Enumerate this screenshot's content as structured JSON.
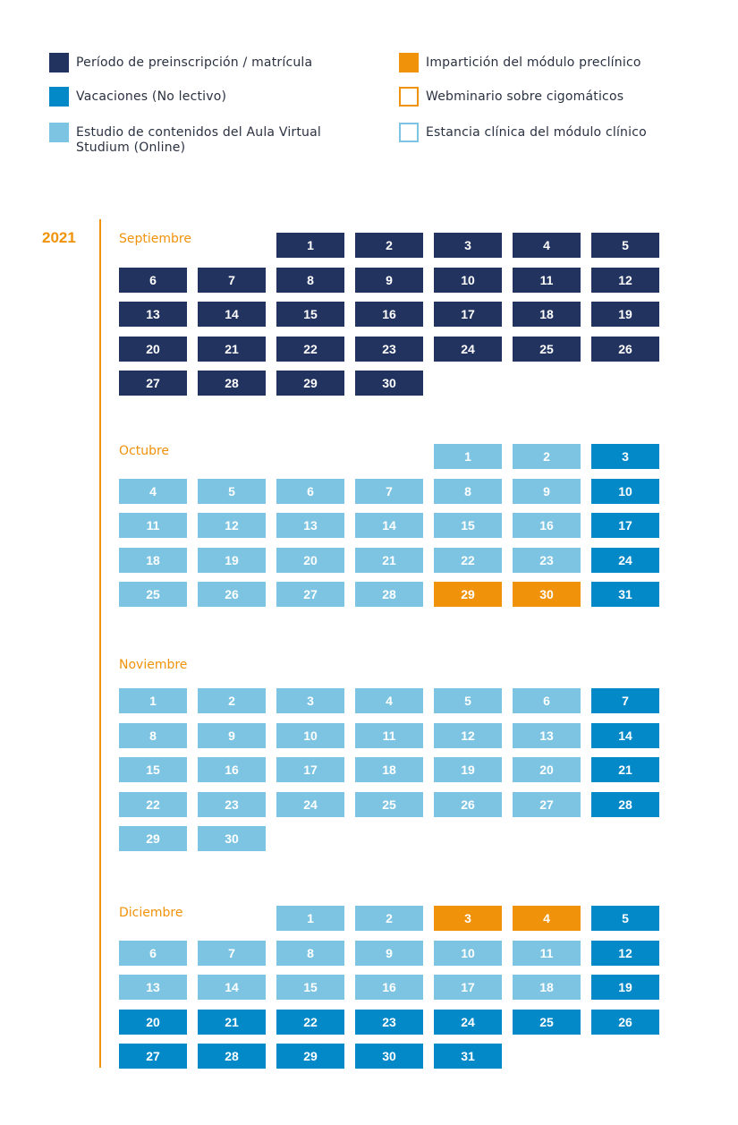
{
  "legend": {
    "items": [
      {
        "key": "dark",
        "label": "Período de preinscripción / matrícula",
        "color": "#22335f",
        "style": "filled"
      },
      {
        "key": "blue",
        "label": "Vacaciones (No lectivo)",
        "color": "#0389c8",
        "style": "filled"
      },
      {
        "key": "light",
        "label": "Estudio de contenidos del Aula Virtual\nStudium (Online)",
        "color": "#7cc4e2",
        "style": "filled"
      },
      {
        "key": "orange",
        "label": "Impartición del módulo preclínico",
        "color": "#f0920a",
        "style": "filled"
      },
      {
        "key": "orange-outline",
        "label": "Webminario sobre cigomáticos",
        "color": "#f0920a",
        "style": "outline"
      },
      {
        "key": "light-outline",
        "label": "Estancia clínica del módulo clínico",
        "color": "#7cc4e2",
        "style": "outline"
      }
    ]
  },
  "calendar": {
    "year": "2021",
    "months": [
      {
        "name": "Septiembre",
        "start_weekday": 2,
        "days": [
          [
            "1",
            "dark"
          ],
          [
            "2",
            "dark"
          ],
          [
            "3",
            "dark"
          ],
          [
            "4",
            "dark"
          ],
          [
            "5",
            "dark"
          ],
          [
            "6",
            "dark"
          ],
          [
            "7",
            "dark"
          ],
          [
            "8",
            "dark"
          ],
          [
            "9",
            "dark"
          ],
          [
            "10",
            "dark"
          ],
          [
            "11",
            "dark"
          ],
          [
            "12",
            "dark"
          ],
          [
            "13",
            "dark"
          ],
          [
            "14",
            "dark"
          ],
          [
            "15",
            "dark"
          ],
          [
            "16",
            "dark"
          ],
          [
            "17",
            "dark"
          ],
          [
            "18",
            "dark"
          ],
          [
            "19",
            "dark"
          ],
          [
            "20",
            "dark"
          ],
          [
            "21",
            "dark"
          ],
          [
            "22",
            "dark"
          ],
          [
            "23",
            "dark"
          ],
          [
            "24",
            "dark"
          ],
          [
            "25",
            "dark"
          ],
          [
            "26",
            "dark"
          ],
          [
            "27",
            "dark"
          ],
          [
            "28",
            "dark"
          ],
          [
            "29",
            "dark"
          ],
          [
            "30",
            "dark"
          ]
        ]
      },
      {
        "name": "Octubre",
        "start_weekday": 4,
        "days": [
          [
            "1",
            "light"
          ],
          [
            "2",
            "light"
          ],
          [
            "3",
            "blue"
          ],
          [
            "4",
            "light"
          ],
          [
            "5",
            "light"
          ],
          [
            "6",
            "light"
          ],
          [
            "7",
            "light"
          ],
          [
            "8",
            "light"
          ],
          [
            "9",
            "light"
          ],
          [
            "10",
            "blue"
          ],
          [
            "11",
            "light"
          ],
          [
            "12",
            "light"
          ],
          [
            "13",
            "light"
          ],
          [
            "14",
            "light"
          ],
          [
            "15",
            "light"
          ],
          [
            "16",
            "light"
          ],
          [
            "17",
            "blue"
          ],
          [
            "18",
            "light"
          ],
          [
            "19",
            "light"
          ],
          [
            "20",
            "light"
          ],
          [
            "21",
            "light"
          ],
          [
            "22",
            "light"
          ],
          [
            "23",
            "light"
          ],
          [
            "24",
            "blue"
          ],
          [
            "25",
            "light"
          ],
          [
            "26",
            "light"
          ],
          [
            "27",
            "light"
          ],
          [
            "28",
            "light"
          ],
          [
            "29",
            "orange"
          ],
          [
            "30",
            "orange"
          ],
          [
            "31",
            "blue"
          ]
        ]
      },
      {
        "name": "Noviembre",
        "start_weekday": 0,
        "days": [
          [
            "1",
            "light"
          ],
          [
            "2",
            "light"
          ],
          [
            "3",
            "light"
          ],
          [
            "4",
            "light"
          ],
          [
            "5",
            "light"
          ],
          [
            "6",
            "light"
          ],
          [
            "7",
            "blue"
          ],
          [
            "8",
            "light"
          ],
          [
            "9",
            "light"
          ],
          [
            "10",
            "light"
          ],
          [
            "11",
            "light"
          ],
          [
            "12",
            "light"
          ],
          [
            "13",
            "light"
          ],
          [
            "14",
            "blue"
          ],
          [
            "15",
            "light"
          ],
          [
            "16",
            "light"
          ],
          [
            "17",
            "light"
          ],
          [
            "18",
            "light"
          ],
          [
            "19",
            "light"
          ],
          [
            "20",
            "light"
          ],
          [
            "21",
            "blue"
          ],
          [
            "22",
            "light"
          ],
          [
            "23",
            "light"
          ],
          [
            "24",
            "light"
          ],
          [
            "25",
            "light"
          ],
          [
            "26",
            "light"
          ],
          [
            "27",
            "light"
          ],
          [
            "28",
            "blue"
          ],
          [
            "29",
            "light"
          ],
          [
            "30",
            "light"
          ]
        ]
      },
      {
        "name": "Diciembre",
        "start_weekday": 2,
        "days": [
          [
            "1",
            "light"
          ],
          [
            "2",
            "light"
          ],
          [
            "3",
            "orange"
          ],
          [
            "4",
            "orange"
          ],
          [
            "5",
            "blue"
          ],
          [
            "6",
            "light"
          ],
          [
            "7",
            "light"
          ],
          [
            "8",
            "light"
          ],
          [
            "9",
            "light"
          ],
          [
            "10",
            "light"
          ],
          [
            "11",
            "light"
          ],
          [
            "12",
            "blue"
          ],
          [
            "13",
            "light"
          ],
          [
            "14",
            "light"
          ],
          [
            "15",
            "light"
          ],
          [
            "16",
            "light"
          ],
          [
            "17",
            "light"
          ],
          [
            "18",
            "light"
          ],
          [
            "19",
            "blue"
          ],
          [
            "20",
            "blue"
          ],
          [
            "21",
            "blue"
          ],
          [
            "22",
            "blue"
          ],
          [
            "23",
            "blue"
          ],
          [
            "24",
            "blue"
          ],
          [
            "25",
            "blue"
          ],
          [
            "26",
            "blue"
          ],
          [
            "27",
            "blue"
          ],
          [
            "28",
            "blue"
          ],
          [
            "29",
            "blue"
          ],
          [
            "30",
            "blue"
          ],
          [
            "31",
            "blue"
          ]
        ]
      }
    ]
  }
}
